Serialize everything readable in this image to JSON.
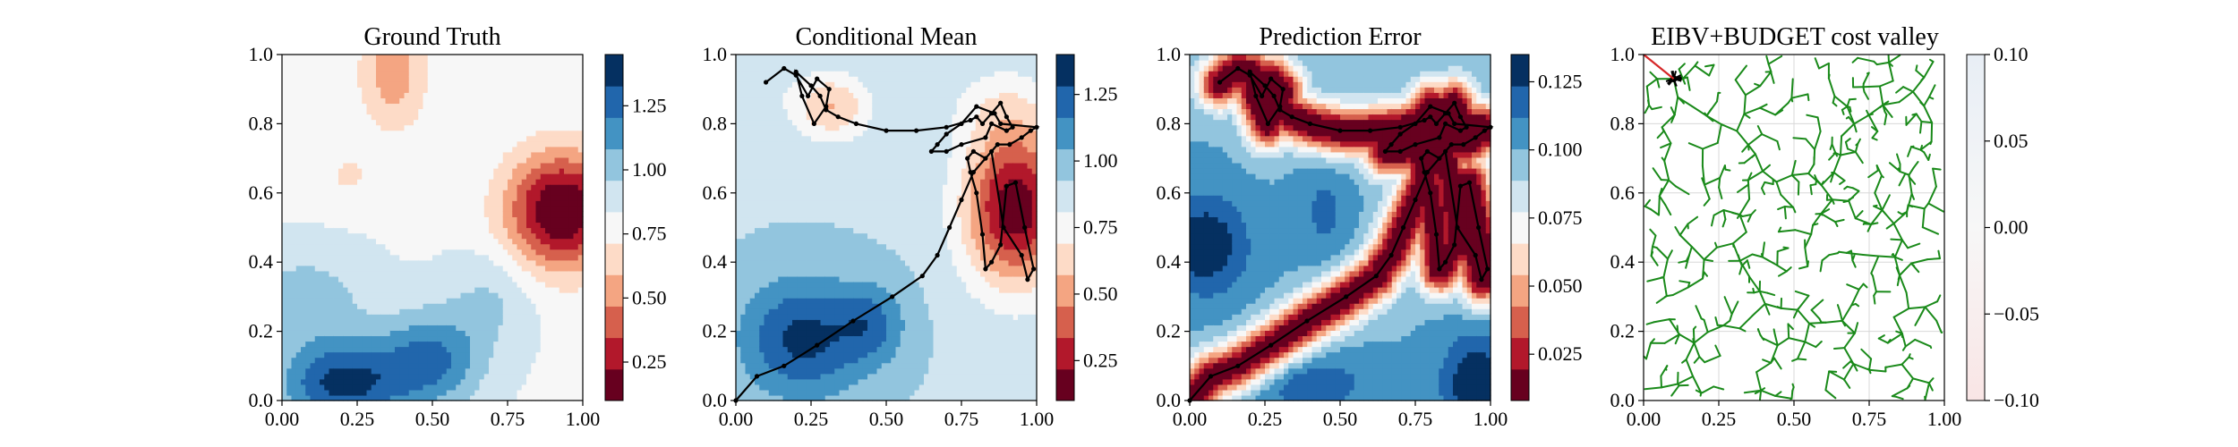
{
  "palette": {
    "rdbu_levels": [
      "#67001f",
      "#b2182b",
      "#d6604d",
      "#f4a582",
      "#fddbc7",
      "#f7f7f7",
      "#d1e5f0",
      "#92c5de",
      "#4393c3",
      "#2166ac",
      "#053061"
    ],
    "path_color": "#000000",
    "tree_color": "#1a8a1a",
    "start_marker_color": "#d62728"
  },
  "chart_data": [
    {
      "type": "heatmap",
      "title": "Ground Truth",
      "xlim": [
        0,
        1
      ],
      "ylim": [
        0,
        1
      ],
      "xticks": [
        "0.00",
        "0.25",
        "0.50",
        "0.75",
        "1.00"
      ],
      "yticks": [
        "0.0",
        "0.2",
        "0.4",
        "0.6",
        "0.8",
        "1.0"
      ],
      "colorbar": {
        "min": 0.1,
        "max": 1.45,
        "ticks": [
          "0.25",
          "0.50",
          "0.75",
          "1.00",
          "1.25"
        ],
        "tick_values": [
          0.25,
          0.5,
          0.75,
          1.0,
          1.25
        ]
      },
      "field": {
        "base": 0.82,
        "bumps": [
          {
            "x": 0.93,
            "y": 0.55,
            "amp": -0.75,
            "sx": 0.13,
            "sy": 0.12
          },
          {
            "x": 0.37,
            "y": 0.95,
            "amp": -0.3,
            "sx": 0.08,
            "sy": 0.12
          },
          {
            "x": 0.2,
            "y": 0.05,
            "amp": 0.55,
            "sx": 0.15,
            "sy": 0.09
          },
          {
            "x": 0.5,
            "y": 0.12,
            "amp": 0.4,
            "sx": 0.12,
            "sy": 0.1
          },
          {
            "x": 0.08,
            "y": 0.3,
            "amp": 0.2,
            "sx": 0.15,
            "sy": 0.1
          },
          {
            "x": 0.7,
            "y": 0.3,
            "amp": 0.15,
            "sx": 0.1,
            "sy": 0.1
          },
          {
            "x": 0.22,
            "y": 0.65,
            "amp": -0.12,
            "sx": 0.08,
            "sy": 0.06
          }
        ]
      }
    },
    {
      "type": "heatmap",
      "title": "Conditional Mean",
      "xlim": [
        0,
        1
      ],
      "ylim": [
        0,
        1
      ],
      "xticks": [
        "0.00",
        "0.25",
        "0.50",
        "0.75",
        "1.00"
      ],
      "yticks": [
        "0.0",
        "0.2",
        "0.4",
        "0.6",
        "0.8",
        "1.0"
      ],
      "colorbar": {
        "min": 0.1,
        "max": 1.4,
        "ticks": [
          "0.25",
          "0.50",
          "0.75",
          "1.00",
          "1.25"
        ],
        "tick_values": [
          0.25,
          0.5,
          0.75,
          1.0,
          1.25
        ]
      },
      "field": {
        "base": 0.92,
        "bumps": [
          {
            "x": 0.93,
            "y": 0.56,
            "amp": -0.8,
            "sx": 0.12,
            "sy": 0.16
          },
          {
            "x": 0.32,
            "y": 0.85,
            "amp": -0.35,
            "sx": 0.09,
            "sy": 0.07
          },
          {
            "x": 0.22,
            "y": 0.18,
            "amp": 0.4,
            "sx": 0.14,
            "sy": 0.12
          },
          {
            "x": 0.45,
            "y": 0.22,
            "amp": 0.25,
            "sx": 0.08,
            "sy": 0.08
          },
          {
            "x": 0.88,
            "y": 0.85,
            "amp": -0.15,
            "sx": 0.12,
            "sy": 0.08
          },
          {
            "x": 0.05,
            "y": 0.9,
            "amp": -0.08,
            "sx": 0.1,
            "sy": 0.1
          }
        ]
      },
      "path": {
        "x": [
          0.0,
          0.07,
          0.16,
          0.27,
          0.39,
          0.52,
          0.62,
          0.67,
          0.71,
          0.75,
          0.79,
          0.85,
          0.89,
          0.95,
          0.97,
          0.99,
          0.96,
          0.93,
          0.9,
          0.88,
          0.85,
          0.83,
          0.82,
          0.8,
          0.78,
          0.77,
          0.79,
          0.83,
          0.87,
          0.91,
          0.95,
          0.98,
          1.0,
          0.88,
          0.86,
          0.8,
          0.75,
          0.7,
          0.67,
          0.65,
          0.7,
          0.75,
          0.83,
          0.85,
          0.9,
          0.92,
          0.9,
          0.88,
          0.85,
          0.82,
          0.8,
          0.78,
          0.7,
          0.6,
          0.5,
          0.4,
          0.34,
          0.3,
          0.28,
          0.25,
          0.2,
          0.22,
          0.26,
          0.3,
          0.31,
          0.27,
          0.24,
          0.2,
          0.16,
          0.1
        ],
        "y": [
          0.0,
          0.07,
          0.1,
          0.16,
          0.23,
          0.3,
          0.36,
          0.42,
          0.5,
          0.58,
          0.66,
          0.72,
          0.5,
          0.42,
          0.35,
          0.38,
          0.5,
          0.63,
          0.62,
          0.45,
          0.4,
          0.38,
          0.48,
          0.6,
          0.66,
          0.7,
          0.72,
          0.7,
          0.74,
          0.74,
          0.76,
          0.78,
          0.79,
          0.8,
          0.83,
          0.85,
          0.8,
          0.77,
          0.74,
          0.72,
          0.72,
          0.74,
          0.76,
          0.8,
          0.78,
          0.79,
          0.82,
          0.86,
          0.83,
          0.8,
          0.82,
          0.81,
          0.79,
          0.78,
          0.78,
          0.8,
          0.82,
          0.84,
          0.88,
          0.91,
          0.95,
          0.88,
          0.8,
          0.85,
          0.9,
          0.93,
          0.88,
          0.94,
          0.96,
          0.92
        ]
      }
    },
    {
      "type": "heatmap",
      "title": "Prediction Error",
      "xlim": [
        0,
        1
      ],
      "ylim": [
        0,
        1
      ],
      "xticks": [
        "0.00",
        "0.25",
        "0.50",
        "0.75",
        "1.00"
      ],
      "yticks": [
        "0.0",
        "0.2",
        "0.4",
        "0.6",
        "0.8",
        "1.0"
      ],
      "colorbar": {
        "min": 0.008,
        "max": 0.135,
        "ticks": [
          "0.025",
          "0.050",
          "0.075",
          "0.100",
          "0.125"
        ],
        "tick_values": [
          0.025,
          0.05,
          0.075,
          0.1,
          0.125
        ]
      },
      "field": {
        "base": 0.1,
        "path_well": {
          "depth": 0.095,
          "sigma": 0.05
        },
        "bumps": [
          {
            "x": 0.05,
            "y": 0.45,
            "amp": 0.035,
            "sx": 0.1,
            "sy": 0.1
          },
          {
            "x": 0.4,
            "y": 0.05,
            "amp": 0.02,
            "sx": 0.15,
            "sy": 0.06
          },
          {
            "x": 0.95,
            "y": 0.05,
            "amp": 0.035,
            "sx": 0.08,
            "sy": 0.1
          },
          {
            "x": 0.45,
            "y": 0.55,
            "amp": 0.015,
            "sx": 0.06,
            "sy": 0.1
          }
        ]
      },
      "path_ref": 1
    },
    {
      "type": "tree",
      "title": "EIBV+BUDGET cost valley",
      "xlim": [
        0,
        1
      ],
      "ylim": [
        0,
        1
      ],
      "xticks": [
        "0.00",
        "0.25",
        "0.50",
        "0.75",
        "1.00"
      ],
      "yticks": [
        "0.0",
        "0.2",
        "0.4",
        "0.6",
        "0.8",
        "1.0"
      ],
      "colorbar": {
        "min": -0.1,
        "max": 0.1,
        "ticks": [
          "−0.10",
          "−0.05",
          "0.00",
          "0.05",
          "0.10"
        ],
        "tick_values": [
          -0.1,
          -0.05,
          0.0,
          0.05,
          0.1
        ]
      },
      "tree_root": {
        "x": 0.1,
        "y": 0.93
      },
      "red_segment": {
        "x": [
          0.0,
          0.1
        ],
        "y": [
          1.0,
          0.93
        ]
      },
      "grid": true
    }
  ]
}
